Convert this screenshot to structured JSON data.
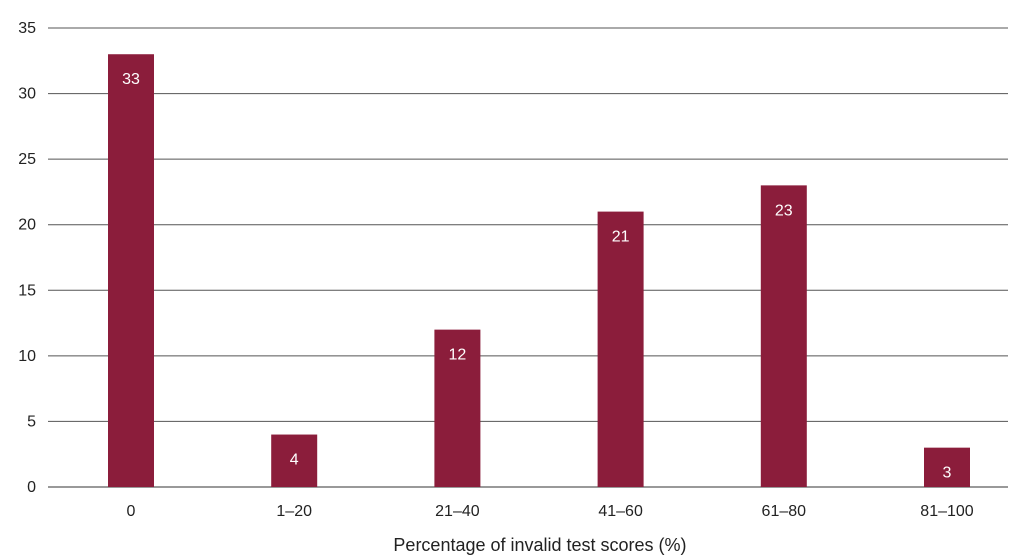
{
  "chart_data": {
    "type": "bar",
    "categories": [
      "0",
      "1–20",
      "21–40",
      "41–60",
      "61–80",
      "81–100"
    ],
    "values": [
      33,
      4,
      12,
      21,
      23,
      3
    ],
    "title": "",
    "xlabel": "Percentage of invalid test scores (%)",
    "ylabel": "",
    "ylim": [
      0,
      35
    ],
    "yticks": [
      0,
      5,
      10,
      15,
      20,
      25,
      30,
      35
    ],
    "grid": true,
    "legend": "none",
    "bar_color": "#8b1d3b",
    "data_labels": [
      "33",
      "4",
      "12",
      "21",
      "23",
      "3"
    ]
  }
}
